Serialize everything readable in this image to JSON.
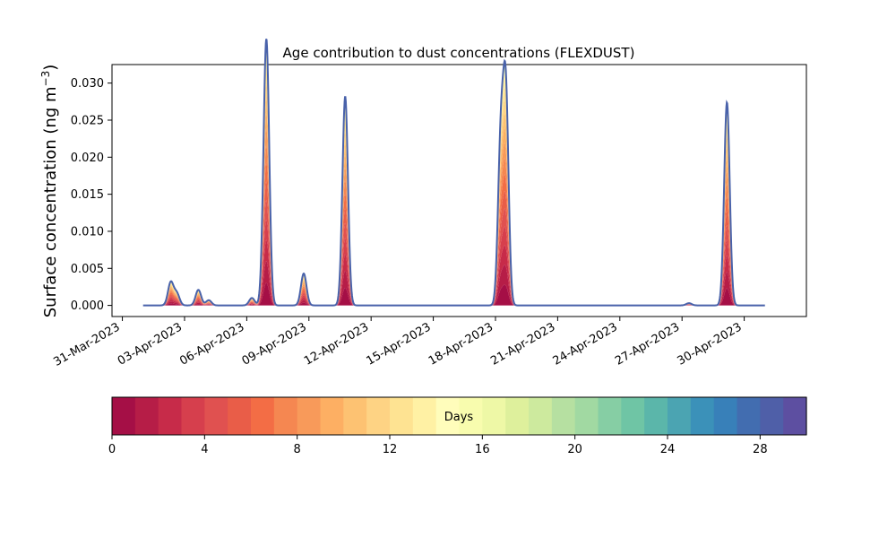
{
  "chart_data": {
    "type": "area",
    "title": "Age contribution to dust concentrations (FLEXDUST)",
    "ylabel": "Surface concentration (ng m",
    "ylabel_sup": "−3",
    "ylabel_close": ")",
    "xlabel": "",
    "xlim": [
      "2023-03-30T12:00",
      "2023-05-03T00:00"
    ],
    "ylim": [
      -0.0015,
      0.0325
    ],
    "x_ticks": [
      "2023-03-31",
      "2023-04-03",
      "2023-04-06",
      "2023-04-09",
      "2023-04-12",
      "2023-04-15",
      "2023-04-18",
      "2023-04-21",
      "2023-04-24",
      "2023-04-27",
      "2023-04-30"
    ],
    "x_tick_labels": [
      "31-Mar-2023",
      "03-Apr-2023",
      "06-Apr-2023",
      "09-Apr-2023",
      "12-Apr-2023",
      "15-Apr-2023",
      "18-Apr-2023",
      "21-Apr-2023",
      "24-Apr-2023",
      "27-Apr-2023",
      "30-Apr-2023"
    ],
    "y_ticks": [
      0.0,
      0.005,
      0.01,
      0.015,
      0.02,
      0.025,
      0.03
    ],
    "y_tick_labels": [
      "0.000",
      "0.005",
      "0.010",
      "0.015",
      "0.020",
      "0.025",
      "0.030"
    ],
    "series_range": [
      "2023-04-01T00:00",
      "2023-05-01T00:00"
    ],
    "events": [
      {
        "time": "2023-04-02T08:00",
        "total": 0.0031
      },
      {
        "time": "2023-04-02T15:00",
        "total": 0.0016
      },
      {
        "time": "2023-04-03T16:00",
        "total": 0.0021
      },
      {
        "time": "2023-04-04T04:00",
        "total": 0.0007
      },
      {
        "time": "2023-04-06T06:00",
        "total": 0.001
      },
      {
        "time": "2023-04-06T21:00",
        "total": 0.0059
      },
      {
        "time": "2023-04-06T23:00",
        "total": 0.031
      },
      {
        "time": "2023-04-08T18:00",
        "total": 0.0043
      },
      {
        "time": "2023-04-10T18:00",
        "total": 0.0282
      },
      {
        "time": "2023-04-18T06:00",
        "total": 0.021
      },
      {
        "time": "2023-04-18T12:00",
        "total": 0.0281
      },
      {
        "time": "2023-04-27T08:00",
        "total": 0.0003
      },
      {
        "time": "2023-04-29T04:00",
        "total": 0.0274
      }
    ],
    "colorbar": {
      "label": "Days",
      "range": [
        0,
        30
      ],
      "ticks": [
        0,
        4,
        8,
        12,
        16,
        20,
        24,
        28
      ],
      "colormap": "Spectral"
    },
    "colors": [
      "#a50f46",
      "#b61d47",
      "#c72b49",
      "#d63f4d",
      "#e05150",
      "#e95d48",
      "#f36d45",
      "#f58751",
      "#f89a5a",
      "#fdaf63",
      "#fdc272",
      "#fed384",
      "#fee392",
      "#fff1a4",
      "#fffdbb",
      "#f8fcae",
      "#eef8a6",
      "#def09c",
      "#cdea9e",
      "#b6e0a1",
      "#a1d9a2",
      "#86cea4",
      "#6fc5a5",
      "#5bb6aa",
      "#4ba4b2",
      "#3b91b9",
      "#3880b9",
      "#426db0",
      "#4f5fa8",
      "#5d4fa1"
    ],
    "line_color": "#4962aa"
  }
}
